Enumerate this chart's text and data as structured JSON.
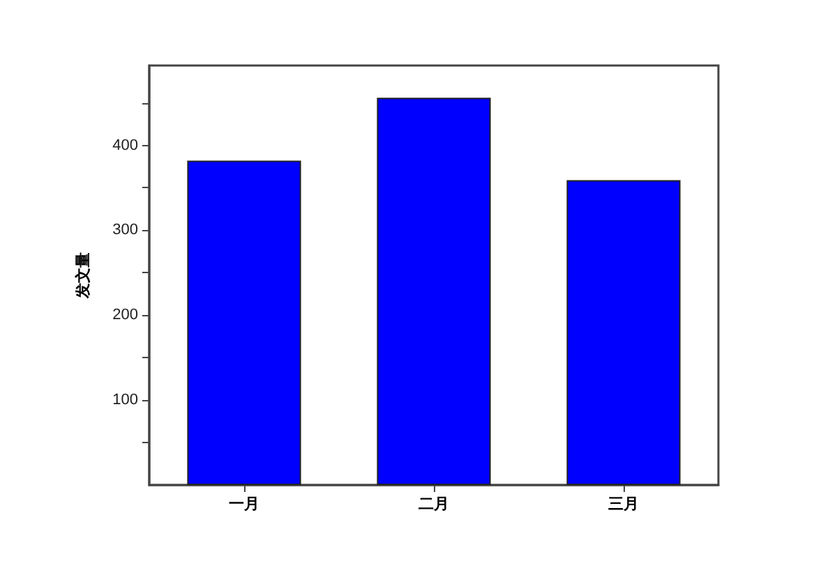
{
  "chart_data": {
    "type": "bar",
    "ylabel": "发文量",
    "categories": [
      "一月",
      "二月",
      "三月"
    ],
    "values": [
      382,
      456,
      359
    ],
    "color": "#0000ff",
    "ylim": [
      0,
      494
    ],
    "yticks": [
      {
        "value": 50,
        "label": null
      },
      100,
      {
        "value": 150,
        "label": null
      },
      200,
      {
        "value": 250,
        "label": null
      },
      300,
      {
        "value": 350,
        "label": null
      },
      400,
      {
        "value": 450,
        "label": null
      }
    ],
    "grid": false
  }
}
